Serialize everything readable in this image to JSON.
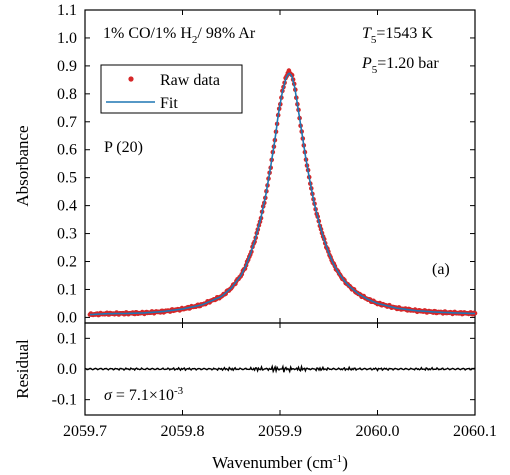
{
  "chart_data": [
    {
      "panel": "main",
      "type": "scatter",
      "ylabel": "Absorbance",
      "xlim": [
        2059.7,
        2060.1
      ],
      "ylim": [
        -0.02,
        1.1
      ],
      "yticks": [
        "0.0",
        "0.1",
        "0.2",
        "0.3",
        "0.4",
        "0.5",
        "0.6",
        "0.7",
        "0.8",
        "0.9",
        "1.0",
        "1.1"
      ],
      "annotations": {
        "mixture": {
          "a": "1% CO/1% H",
          "sub": "2",
          "b": "/ 98% Ar"
        },
        "temperature": {
          "sym": "T",
          "sub": "5",
          "val": "=1543 K"
        },
        "pressure": {
          "sym": "P",
          "sub": "5",
          "val": "=1.20 bar"
        },
        "line": "P (20)",
        "panel_label": "(a)"
      },
      "legend_position": "top-left",
      "series": [
        {
          "name": "Raw data",
          "style": "points",
          "color": "#d62728",
          "x": [
            2059.705,
            2059.72,
            2059.74,
            2059.76,
            2059.78,
            2059.8,
            2059.82,
            2059.84,
            2059.85,
            2059.86,
            2059.865,
            2059.87,
            2059.875,
            2059.88,
            2059.885,
            2059.89,
            2059.895,
            2059.898,
            2059.902,
            2059.906,
            2059.909,
            2059.912,
            2059.915,
            2059.918,
            2059.922,
            2059.926,
            2059.93,
            2059.935,
            2059.94,
            2059.945,
            2059.95,
            2059.955,
            2059.96,
            2059.965,
            2059.97,
            2059.98,
            2059.99,
            2060.0,
            2060.02,
            2060.04,
            2060.06,
            2060.08,
            2060.1
          ],
          "y": [
            0.01,
            0.013,
            0.014,
            0.016,
            0.021,
            0.03,
            0.045,
            0.075,
            0.105,
            0.15,
            0.185,
            0.23,
            0.285,
            0.35,
            0.43,
            0.53,
            0.64,
            0.72,
            0.8,
            0.86,
            0.88,
            0.87,
            0.83,
            0.76,
            0.67,
            0.58,
            0.5,
            0.41,
            0.34,
            0.28,
            0.23,
            0.19,
            0.16,
            0.135,
            0.115,
            0.085,
            0.065,
            0.05,
            0.033,
            0.024,
            0.019,
            0.016,
            0.014
          ]
        },
        {
          "name": "Fit",
          "style": "line",
          "color": "#1f77b4",
          "x": [
            2059.705,
            2059.72,
            2059.74,
            2059.76,
            2059.78,
            2059.8,
            2059.82,
            2059.84,
            2059.85,
            2059.86,
            2059.865,
            2059.87,
            2059.875,
            2059.88,
            2059.885,
            2059.89,
            2059.895,
            2059.898,
            2059.902,
            2059.906,
            2059.909,
            2059.912,
            2059.915,
            2059.918,
            2059.922,
            2059.926,
            2059.93,
            2059.935,
            2059.94,
            2059.945,
            2059.95,
            2059.955,
            2059.96,
            2059.965,
            2059.97,
            2059.98,
            2059.99,
            2060.0,
            2060.02,
            2060.04,
            2060.06,
            2060.08,
            2060.1
          ],
          "y": [
            0.01,
            0.013,
            0.014,
            0.016,
            0.021,
            0.03,
            0.045,
            0.075,
            0.105,
            0.15,
            0.185,
            0.23,
            0.285,
            0.35,
            0.43,
            0.53,
            0.64,
            0.72,
            0.8,
            0.855,
            0.875,
            0.865,
            0.825,
            0.76,
            0.67,
            0.58,
            0.5,
            0.41,
            0.34,
            0.28,
            0.23,
            0.19,
            0.16,
            0.135,
            0.115,
            0.085,
            0.065,
            0.05,
            0.033,
            0.024,
            0.019,
            0.016,
            0.014
          ]
        }
      ]
    },
    {
      "panel": "residual",
      "type": "line",
      "xlabel": {
        "text": "Wavenumber (cm",
        "sup": "-1",
        "tail": ")"
      },
      "ylabel": "Residual",
      "xlim": [
        2059.7,
        2060.1
      ],
      "ylim": [
        -0.15,
        0.15
      ],
      "xticks": [
        "2059.7",
        "2059.8",
        "2059.9",
        "2060.0",
        "2060.1"
      ],
      "yticks": [
        "0.1",
        "0.0",
        "-0.1"
      ],
      "sigma": {
        "label": "σ",
        "eq": " = 7.1×10",
        "sup": "-3"
      },
      "series": [
        {
          "style": "line",
          "color": "#000000",
          "x": [
            2059.7,
            2059.75,
            2059.8,
            2059.85,
            2059.88,
            2059.895,
            2059.905,
            2059.91,
            2059.92,
            2059.94,
            2059.97,
            2060.0,
            2060.05,
            2060.1
          ],
          "y": [
            0.0,
            0.002,
            -0.003,
            0.004,
            -0.006,
            0.01,
            -0.012,
            0.008,
            -0.008,
            0.005,
            -0.004,
            0.003,
            -0.003,
            0.002
          ]
        }
      ]
    }
  ]
}
